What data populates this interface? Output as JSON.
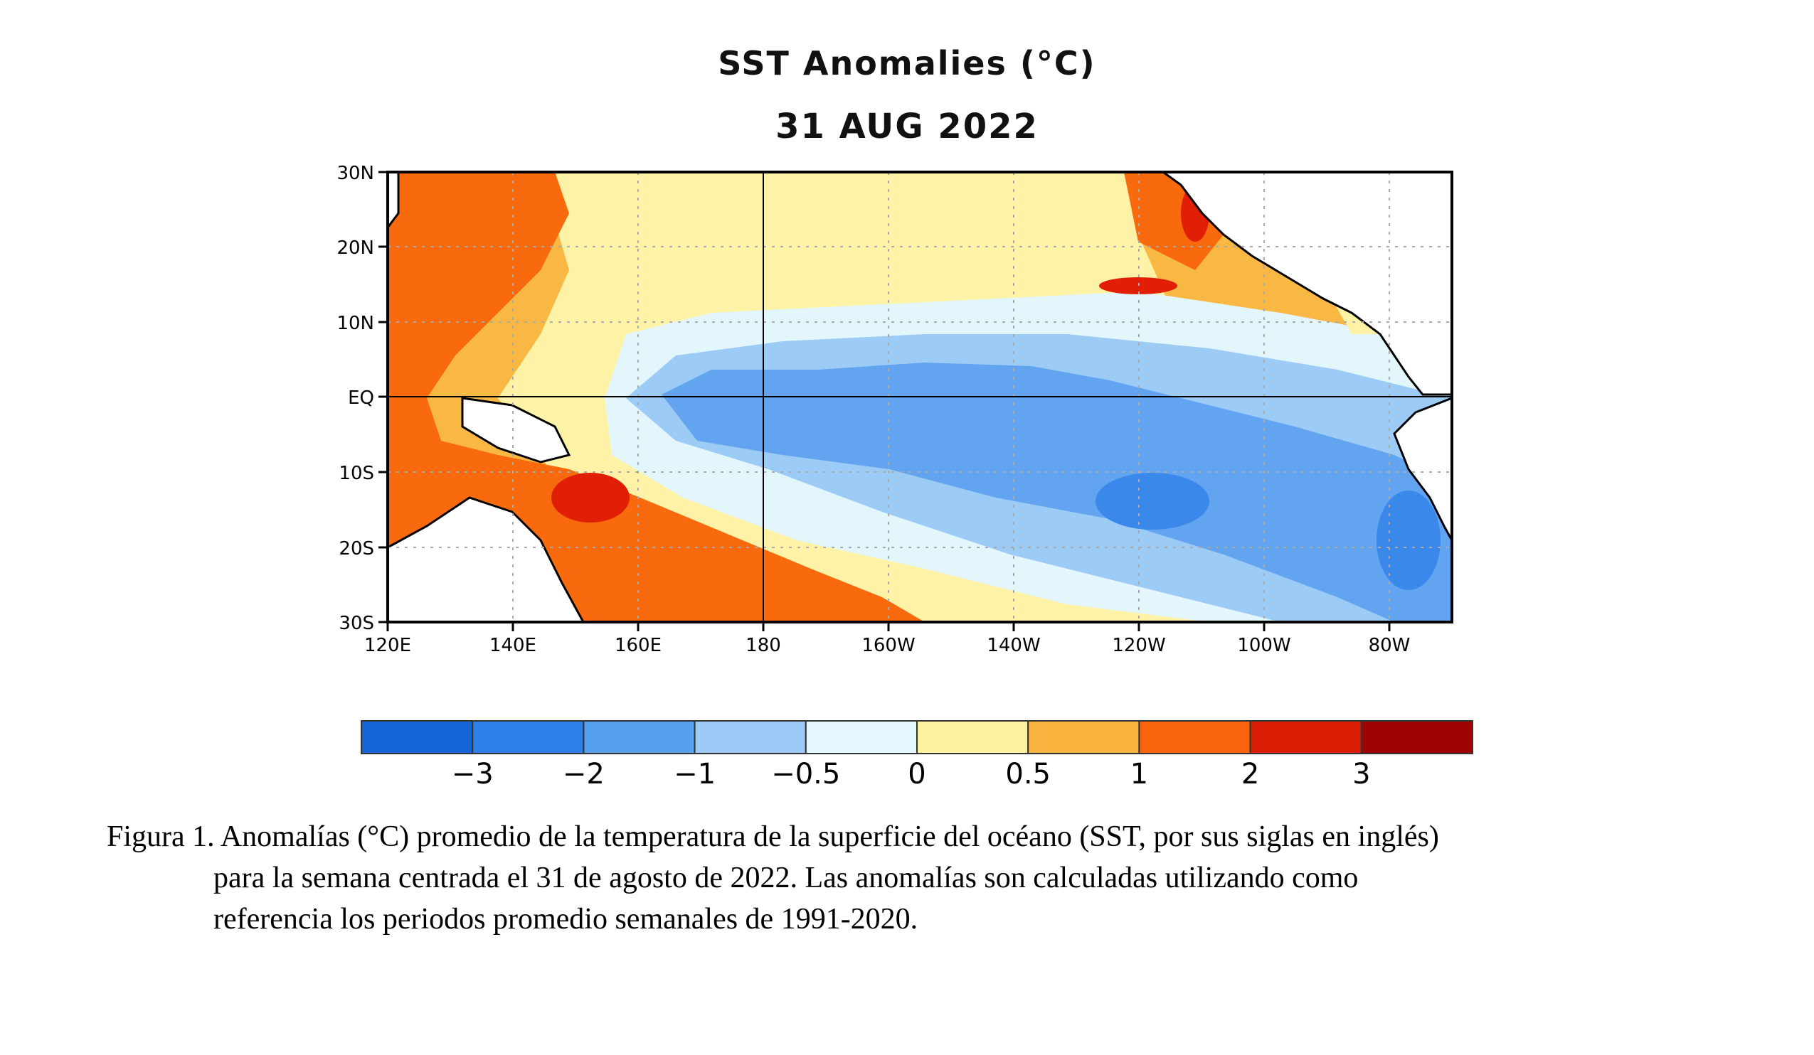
{
  "figure": {
    "title": "SST Anomalies (°C)",
    "date": "31 AUG 2022",
    "lat_labels": [
      "30N",
      "20N",
      "10N",
      "EQ",
      "10S",
      "20S",
      "30S"
    ],
    "lon_labels": [
      "120E",
      "140E",
      "160E",
      "180",
      "160W",
      "140W",
      "120W",
      "100W",
      "80W"
    ],
    "colors": {
      "cold_3": "#1a6ad6",
      "cold_2": "#3a88ea",
      "cold_1": "#62a4f0",
      "cool_05": "#9ccbf6",
      "neutral_cool": "#e2f6fb",
      "neutral_warm": "#fdf2a6",
      "warm_05": "#f9b843",
      "warm_1": "#f86a0d",
      "warm_2": "#e01f06",
      "warm_3": "#a10303",
      "land": "#ffffff",
      "coast": "#000000"
    }
  },
  "colorbar": {
    "bins": [
      "#1565d8",
      "#2f7fe8",
      "#56a0ee",
      "#9dcaf6",
      "#e3f7fc",
      "#fdf2a0",
      "#f9b33f",
      "#f9640e",
      "#dc1d05",
      "#a00303"
    ],
    "labels": [
      "−3",
      "−2",
      "−1",
      "−0.5",
      "0",
      "0.5",
      "1",
      "2",
      "3"
    ]
  },
  "caption": {
    "line1": "Figura 1. Anomalías (°C) promedio de la temperatura de la superficie del océano (SST, por sus siglas en inglés)",
    "line2": "para la semana centrada el 31 de agosto de 2022. Las anomalías son calculadas utilizando como",
    "line3": "referencia los periodos promedio semanales de 1991-2020."
  }
}
